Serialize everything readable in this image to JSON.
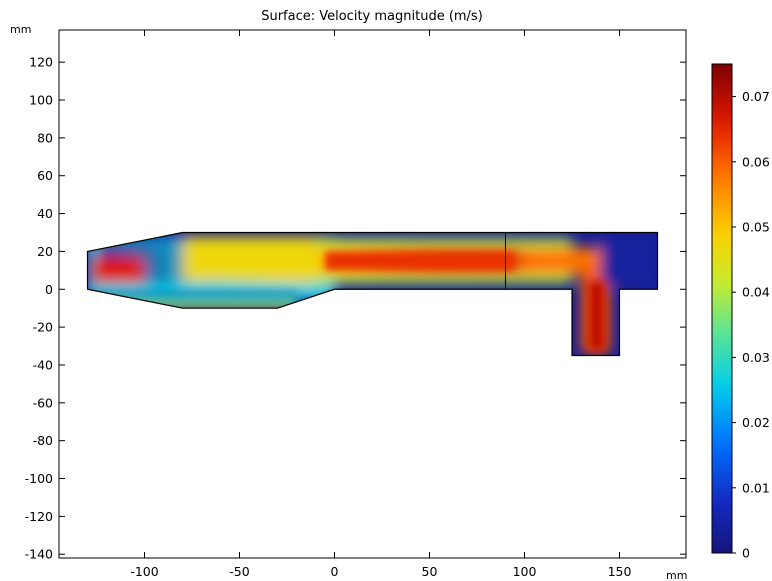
{
  "chart_data": {
    "type": "heatmap",
    "title": "Surface: Velocity magnitude (m/s)",
    "x_unit": "mm",
    "y_unit": "mm",
    "xlim": [
      -145,
      185
    ],
    "ylim": [
      -142,
      137
    ],
    "x_ticks": [
      -100,
      -50,
      0,
      50,
      100,
      150
    ],
    "y_ticks": [
      120,
      100,
      80,
      60,
      40,
      20,
      0,
      -20,
      -40,
      -60,
      -80,
      -100,
      -120,
      -140
    ],
    "domain_outline": [
      [
        -130,
        20
      ],
      [
        -80,
        30
      ],
      [
        170,
        30
      ],
      [
        170,
        0
      ],
      [
        150,
        0
      ],
      [
        150,
        -35
      ],
      [
        125,
        -35
      ],
      [
        125,
        0
      ],
      [
        0,
        0
      ],
      [
        -30,
        -10
      ],
      [
        -80,
        -10
      ],
      [
        -130,
        0
      ]
    ],
    "interior_line": {
      "x": 90,
      "y": [
        0,
        30
      ]
    },
    "colorbar": {
      "min": 0,
      "max": 0.075,
      "ticks": [
        0,
        0.01,
        0.02,
        0.03,
        0.04,
        0.05,
        0.06,
        0.07
      ],
      "tick_labels": [
        "0",
        "0.01",
        "0.02",
        "0.03",
        "0.04",
        "0.05",
        "0.06",
        "0.07"
      ],
      "colormap": "rainbow"
    }
  }
}
